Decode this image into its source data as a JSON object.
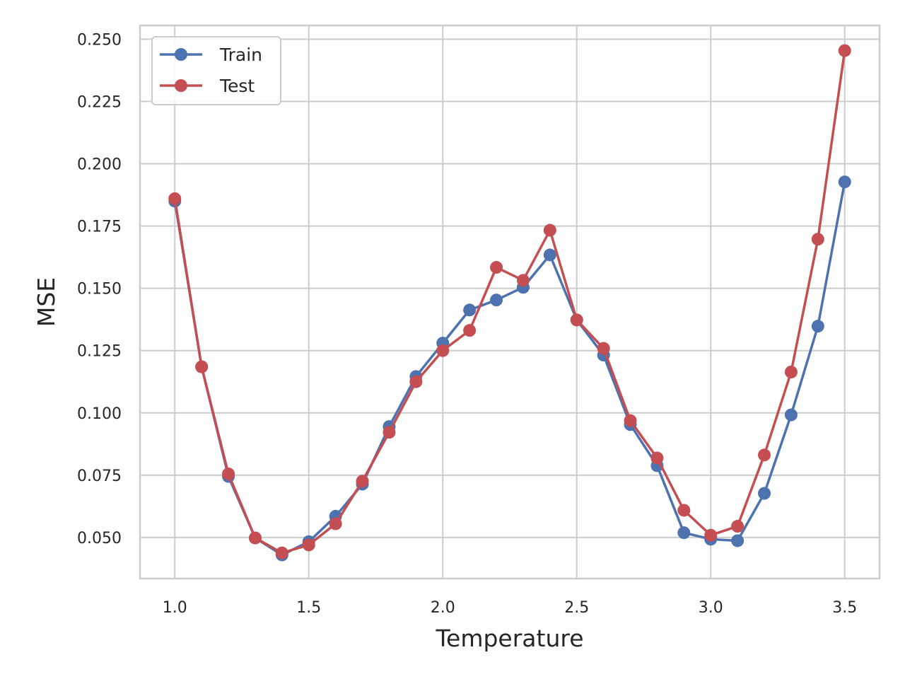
{
  "chart_data": {
    "type": "line",
    "title": "",
    "xlabel": "Temperature",
    "ylabel": "MSE",
    "xlim": [
      0.87,
      3.63
    ],
    "ylim": [
      0.0335,
      0.2555
    ],
    "xticks": [
      1.0,
      1.5,
      2.0,
      2.5,
      3.0,
      3.5
    ],
    "xtick_labels": [
      "1.0",
      "1.5",
      "2.0",
      "2.5",
      "3.0",
      "3.5"
    ],
    "yticks": [
      0.05,
      0.075,
      0.1,
      0.125,
      0.15,
      0.175,
      0.2,
      0.225,
      0.25
    ],
    "ytick_labels": [
      "0.050",
      "0.075",
      "0.100",
      "0.125",
      "0.150",
      "0.175",
      "0.200",
      "0.225",
      "0.250"
    ],
    "grid": true,
    "legend_position": "top-left",
    "x": [
      1.0,
      1.1,
      1.2,
      1.3,
      1.4,
      1.5,
      1.6,
      1.7,
      1.8,
      1.9,
      2.0,
      2.1,
      2.2,
      2.3,
      2.4,
      2.5,
      2.6,
      2.7,
      2.8,
      2.9,
      3.0,
      3.1,
      3.2,
      3.3,
      3.4,
      3.5
    ],
    "series": [
      {
        "name": "Train",
        "color": "#4c72b0",
        "values": [
          0.185,
          0.1185,
          0.0745,
          0.0498,
          0.043,
          0.0483,
          0.0585,
          0.0714,
          0.0945,
          0.1146,
          0.128,
          0.1413,
          0.1453,
          0.1504,
          0.1634,
          0.1373,
          0.1232,
          0.0953,
          0.0788,
          0.0519,
          0.0493,
          0.0487,
          0.0677,
          0.0992,
          0.1348,
          0.1927
        ]
      },
      {
        "name": "Test",
        "color": "#c44e52",
        "values": [
          0.186,
          0.1185,
          0.0755,
          0.0498,
          0.0438,
          0.047,
          0.0555,
          0.0726,
          0.0922,
          0.1125,
          0.125,
          0.1331,
          0.1584,
          0.1532,
          0.1733,
          0.1373,
          0.1259,
          0.0969,
          0.0819,
          0.0609,
          0.0509,
          0.0545,
          0.0831,
          0.1164,
          0.1697,
          0.2454
        ]
      }
    ]
  }
}
